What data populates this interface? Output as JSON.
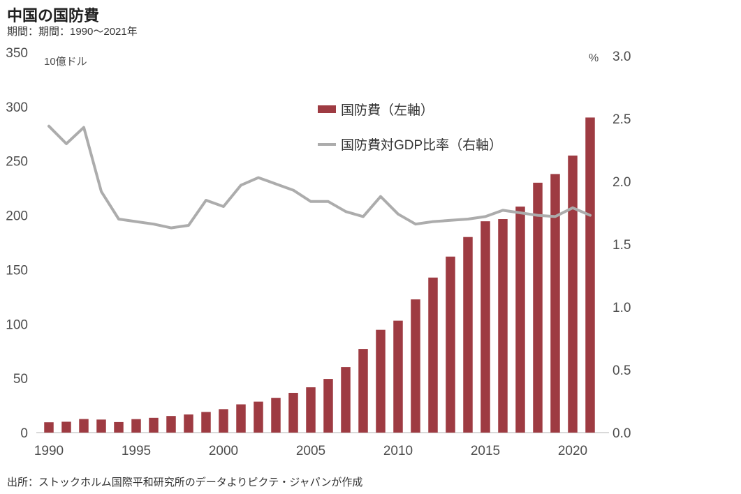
{
  "header": {
    "title": "中国の国防費",
    "subtitle": "期間：期間：1990〜2021年"
  },
  "legend": {
    "bar_label": "国防費（左軸）",
    "line_label": "国防費対GDP比率（右軸）"
  },
  "axes": {
    "left_unit": "10億ドル",
    "right_unit": "%"
  },
  "footer": {
    "source": "出所：ストックホルム国際平和研究所のデータよりピクテ・ジャパンが作成"
  },
  "colors": {
    "bar": "#9e3b42",
    "line": "#acacac",
    "axis_text": "#4d4d4d",
    "baseline": "#d9d9d9"
  },
  "chart_data": {
    "type": "bar",
    "subtype": "bar-and-line-dual-axis",
    "title": "中国の国防費",
    "categories": [
      1990,
      1991,
      1992,
      1993,
      1994,
      1995,
      1996,
      1997,
      1998,
      1999,
      2000,
      2001,
      2002,
      2003,
      2004,
      2005,
      2006,
      2007,
      2008,
      2009,
      2010,
      2011,
      2012,
      2013,
      2014,
      2015,
      2016,
      2017,
      2018,
      2019,
      2020,
      2021
    ],
    "series": [
      {
        "name": "国防費（左軸）",
        "type": "bar",
        "axis": "left",
        "values": [
          9.5,
          10,
          12.5,
          12,
          9.7,
          12.4,
          13.6,
          15.3,
          16.7,
          19,
          21.6,
          26,
          28.5,
          32,
          36.6,
          41.7,
          49.4,
          60.3,
          77,
          94.6,
          103,
          122.6,
          142.7,
          162,
          180,
          194.5,
          196.5,
          208,
          230,
          238,
          255,
          290
        ]
      },
      {
        "name": "国防費対GDP比率（右軸）",
        "type": "line",
        "axis": "right",
        "values": [
          2.44,
          2.3,
          2.43,
          1.92,
          1.7,
          1.68,
          1.66,
          1.63,
          1.65,
          1.85,
          1.8,
          1.97,
          2.03,
          1.98,
          1.93,
          1.84,
          1.84,
          1.76,
          1.72,
          1.88,
          1.74,
          1.66,
          1.68,
          1.69,
          1.7,
          1.72,
          1.77,
          1.75,
          1.73,
          1.72,
          1.79,
          1.73
        ]
      }
    ],
    "left_axis": {
      "label": "10億ドル",
      "min": 0,
      "max": 350,
      "tick_step": 50,
      "ticks": [
        350,
        300,
        250,
        200,
        150,
        100,
        50,
        0
      ]
    },
    "right_axis": {
      "label": "%",
      "min": 0.0,
      "max": 3.0,
      "tick_step": 0.5,
      "ticks": [
        "3.0",
        "2.5",
        "2.0",
        "1.5",
        "1.0",
        "0.5",
        "0.0"
      ]
    },
    "x_tick_labels": [
      "1990",
      "1995",
      "2000",
      "2005",
      "2010",
      "2015",
      "2020"
    ],
    "x_tick_years": [
      1990,
      1995,
      2000,
      2005,
      2010,
      2015,
      2020
    ],
    "grid": false,
    "legend_position": "top-center"
  }
}
